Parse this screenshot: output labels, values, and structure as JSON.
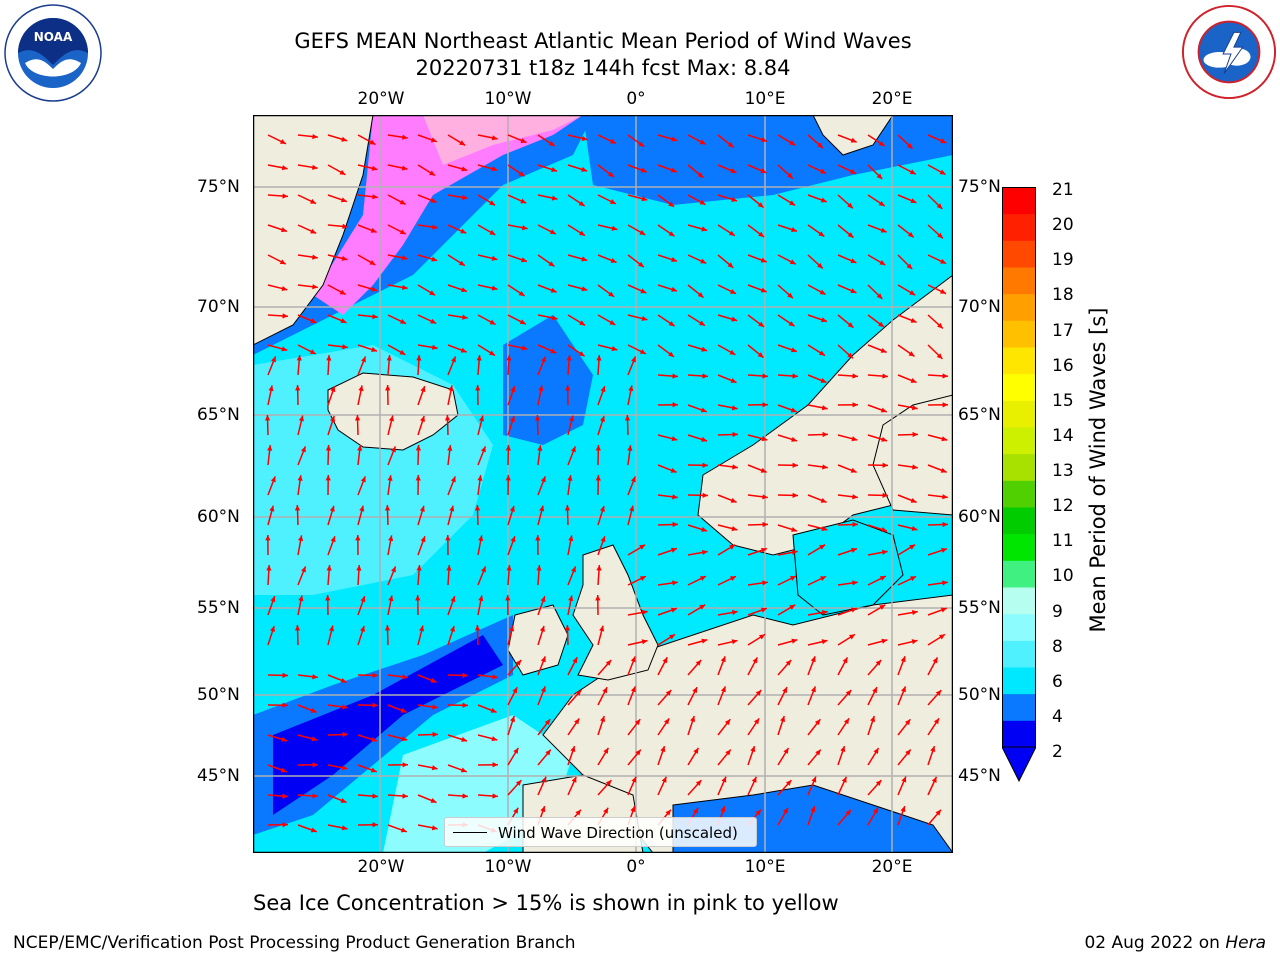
{
  "header": {
    "title_line1": "GEFS MEAN Northeast Atlantic Mean Period of Wind Waves",
    "title_line2": "20220731 t18z 144h fcst    Max: 8.84"
  },
  "logos": {
    "left": {
      "name": "NOAA",
      "ring_text": "NATIONAL OCEANIC AND ATMOSPHERIC ADMINISTRATION · U.S. DEPARTMENT OF COMMERCE"
    },
    "right": {
      "ring_text": "NATIONAL WEATHER SERVICE"
    }
  },
  "map": {
    "lon_ticks": [
      "20°W",
      "10°W",
      "0°",
      "10°E",
      "20°E"
    ],
    "lat_ticks": [
      "75°N",
      "70°N",
      "65°N",
      "60°N",
      "55°N",
      "50°N",
      "45°N"
    ],
    "legend_label": "Wind Wave Direction (unscaled)",
    "colors": {
      "land": "#efedde",
      "ice": "#ffffff",
      "arrow": "#ff0000",
      "grid": "#b0b0b0"
    }
  },
  "colorbar": {
    "title": "Mean Period of Wind Waves [s]",
    "labels": [
      "21",
      "20",
      "19",
      "18",
      "17",
      "16",
      "15",
      "14",
      "13",
      "12",
      "11",
      "10",
      "9",
      "8",
      "6",
      "4",
      "2"
    ],
    "colors": [
      "#0000f5",
      "#0a78ff",
      "#00e8ff",
      "#4ff0ff",
      "#8cfcff",
      "#b6fff0",
      "#40f080",
      "#00e600",
      "#00cc00",
      "#50d000",
      "#a8e000",
      "#ccf000",
      "#e8f000",
      "#ffff00",
      "#ffe600",
      "#ffc000",
      "#ffa000",
      "#ff7800",
      "#ff4800",
      "#ff2000",
      "#ff0000"
    ]
  },
  "caption": "Sea Ice Concentration > 15% is shown in pink to yellow",
  "footer": {
    "left": "NCEP/EMC/Verification Post Processing Product Generation Branch",
    "right_prefix": "02 Aug 2022 on ",
    "right_host": "Hera"
  }
}
